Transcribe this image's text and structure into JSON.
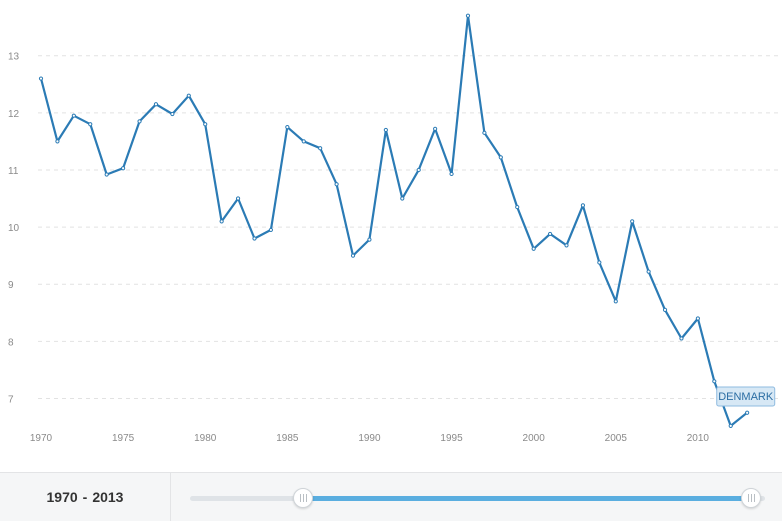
{
  "chart_data": {
    "type": "line",
    "x": [
      1970,
      1971,
      1972,
      1973,
      1974,
      1975,
      1976,
      1977,
      1978,
      1979,
      1980,
      1981,
      1982,
      1983,
      1984,
      1985,
      1986,
      1987,
      1988,
      1989,
      1990,
      1991,
      1992,
      1993,
      1994,
      1995,
      1996,
      1997,
      1998,
      1999,
      2000,
      2001,
      2002,
      2003,
      2004,
      2005,
      2006,
      2007,
      2008,
      2009,
      2010,
      2011,
      2012,
      2013
    ],
    "series": [
      {
        "name": "DENMARK",
        "values": [
          12.6,
          11.5,
          11.95,
          11.8,
          10.92,
          11.03,
          11.85,
          12.15,
          11.98,
          12.3,
          11.8,
          10.1,
          10.5,
          9.8,
          9.95,
          11.75,
          11.5,
          11.38,
          10.75,
          9.5,
          9.78,
          11.7,
          10.5,
          11.0,
          11.72,
          10.93,
          13.7,
          11.65,
          11.22,
          10.35,
          9.62,
          9.88,
          9.68,
          10.38,
          9.38,
          8.7,
          10.1,
          9.22,
          8.55,
          8.05,
          8.4,
          7.3,
          6.52,
          6.75
        ]
      }
    ],
    "xticks": [
      "1970",
      "1975",
      "1980",
      "1985",
      "1990",
      "1995",
      "2000",
      "2005",
      "2010"
    ],
    "yticks": [
      "7",
      "8",
      "9",
      "10",
      "11",
      "12",
      "13"
    ],
    "xlim": [
      1970,
      2013.6
    ],
    "ylim": [
      6.5,
      13.8
    ],
    "grid": true,
    "series_color": "#2b7bb5"
  },
  "footer": {
    "range_start": "1970",
    "range_end": "2013",
    "range_separator": "-",
    "slider_start_fraction": 0.0,
    "slider_end_fraction": 1.0
  }
}
